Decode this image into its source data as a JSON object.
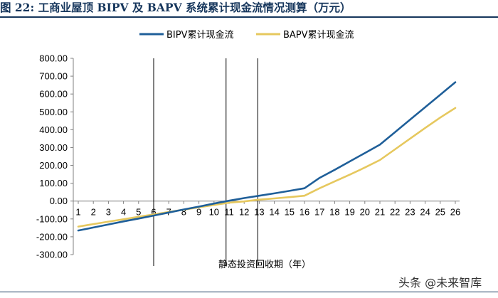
{
  "figure_title": "图 22:  工商业屋顶 BIPV 及 BAPV 系统累计现金流情况测算（万元）",
  "watermark": "头条 @未来智库",
  "colors": {
    "bipv": "#1f5f99",
    "bapv": "#e6c85e",
    "title": "#16365c"
  },
  "chart_data": {
    "type": "line",
    "title": "",
    "xlabel": "静态投资回收期（年）",
    "ylabel": "",
    "x": [
      1,
      2,
      3,
      4,
      5,
      6,
      7,
      8,
      9,
      10,
      11,
      12,
      13,
      14,
      15,
      16,
      17,
      18,
      19,
      20,
      21,
      22,
      23,
      24,
      25,
      26
    ],
    "ylim": [
      -300,
      800
    ],
    "yticks": [
      "800.00",
      "700.00",
      "600.00",
      "500.00",
      "400.00",
      "300.00",
      "200.00",
      "100.00",
      "0.00",
      "-100.00",
      "-200.00",
      "-300.00"
    ],
    "yticks_values": [
      800,
      700,
      600,
      500,
      400,
      300,
      200,
      100,
      0,
      -100,
      -200,
      -300
    ],
    "legend_position": "top",
    "grid": false,
    "vertical_markers": [
      6,
      10.8,
      12.9
    ],
    "series": [
      {
        "name": "BIPV累计现金流",
        "values": [
          -165,
          -148,
          -131,
          -114,
          -98,
          -81,
          -64,
          -47,
          -31,
          -14,
          2,
          17,
          30,
          43,
          57,
          72,
          130,
          175,
          222,
          269,
          316,
          386,
          456,
          526,
          596,
          666
        ]
      },
      {
        "name": "BAPV累计现金流",
        "values": [
          -143,
          -129,
          -115,
          -102,
          -88,
          -75,
          -61,
          -48,
          -35,
          -22,
          -9,
          -2,
          8,
          15,
          22,
          30,
          72,
          110,
          148,
          188,
          230,
          290,
          350,
          410,
          468,
          522
        ]
      }
    ]
  }
}
